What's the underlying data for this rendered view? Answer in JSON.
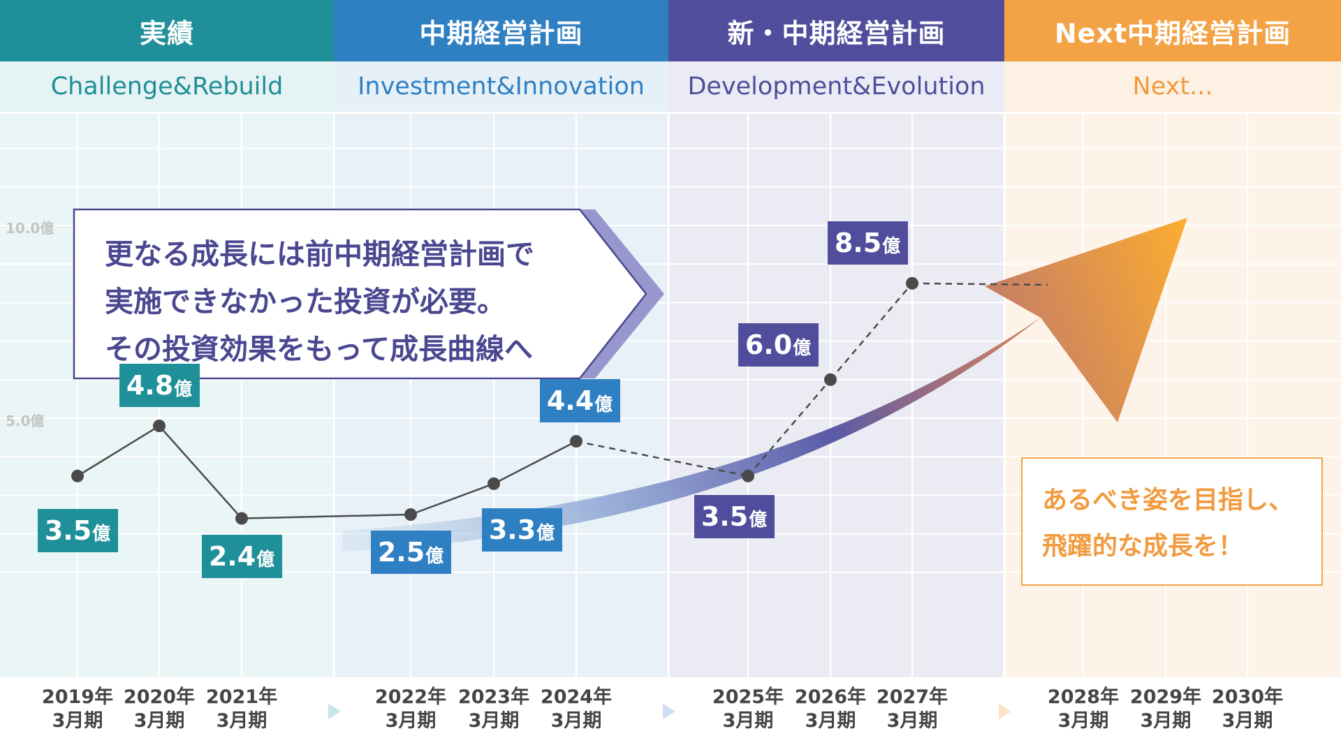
{
  "phases": [
    {
      "title": "実績",
      "subtitle": "Challenge&Rebuild",
      "color": "#1f9099",
      "band": "#e6f3f4",
      "subcolor": "#1f8f95",
      "bg": "#eaf5f5"
    },
    {
      "title": "中期経営計画",
      "subtitle": "Investment&Innovation",
      "color": "#2f7fc3",
      "band": "#e6f0f7",
      "subcolor": "#2f7fc3",
      "bg": "#e8f1f8"
    },
    {
      "title": "新・中期経営計画",
      "subtitle": "Development&Evolution",
      "color": "#4f4d9c",
      "band": "#eaebf5",
      "subcolor": "#4f4d9c",
      "bg": "#ebebf4"
    },
    {
      "title": "Next中期経営計画",
      "subtitle": "Next...",
      "color": "#f4a246",
      "band": "#fdf1e3",
      "subcolor": "#f19a3e",
      "bg": "#fdf3e8"
    }
  ],
  "callout": {
    "lines": [
      "更なる成長には前中期経営計画で",
      "実施できなかった投資が必要。",
      "その投資効果をもって成長曲線へ"
    ]
  },
  "goal": {
    "lines": [
      "あるべき姿を目指し、",
      "飛躍的な成長を！"
    ]
  },
  "chart_data": {
    "type": "line",
    "x": [
      "2019年3月期",
      "2020年3月期",
      "2021年3月期",
      "2022年3月期",
      "2023年3月期",
      "2024年3月期",
      "2025年3月期",
      "2026年3月期",
      "2027年3月期",
      "2028年3月期",
      "2029年3月期",
      "2030年3月期"
    ],
    "x_labels": [
      {
        "year": "2019年",
        "period": "3月期"
      },
      {
        "year": "2020年",
        "period": "3月期"
      },
      {
        "year": "2021年",
        "period": "3月期"
      },
      {
        "year": "2022年",
        "period": "3月期"
      },
      {
        "year": "2023年",
        "period": "3月期"
      },
      {
        "year": "2024年",
        "period": "3月期"
      },
      {
        "year": "2025年",
        "period": "3月期"
      },
      {
        "year": "2026年",
        "period": "3月期"
      },
      {
        "year": "2027年",
        "period": "3月期"
      },
      {
        "year": "2028年",
        "period": "3月期"
      },
      {
        "year": "2029年",
        "period": "3月期"
      },
      {
        "year": "2030年",
        "period": "3月期"
      }
    ],
    "series": [
      {
        "values": [
          3.5,
          4.8,
          2.4,
          2.5,
          3.3,
          4.4,
          3.5,
          6.0,
          8.5,
          null,
          null,
          null
        ],
        "style": "solid through 2024年3月期, dashed afterwards"
      }
    ],
    "point_values": [
      3.5,
      4.8,
      2.4,
      2.5,
      3.3,
      4.4,
      3.5,
      6.0,
      8.5
    ],
    "data_labels": [
      {
        "value": "3.5",
        "unit": "億",
        "color": "#1f9099"
      },
      {
        "value": "4.8",
        "unit": "億",
        "color": "#1f9099"
      },
      {
        "value": "2.4",
        "unit": "億",
        "color": "#1f9099"
      },
      {
        "value": "2.5",
        "unit": "億",
        "color": "#2f7fc3"
      },
      {
        "value": "3.3",
        "unit": "億",
        "color": "#2f7fc3"
      },
      {
        "value": "4.4",
        "unit": "億",
        "color": "#2f7fc3"
      },
      {
        "value": "3.5",
        "unit": "億",
        "color": "#4f4d9c"
      },
      {
        "value": "6.0",
        "unit": "億",
        "color": "#4f4d9c"
      },
      {
        "value": "8.5",
        "unit": "億",
        "color": "#4f4d9c"
      }
    ],
    "y_ticks": [
      {
        "value": 5,
        "label": "5.0億"
      },
      {
        "value": 10,
        "label": "10.0億"
      }
    ],
    "grid": true,
    "xlabel": "",
    "ylabel": ""
  }
}
